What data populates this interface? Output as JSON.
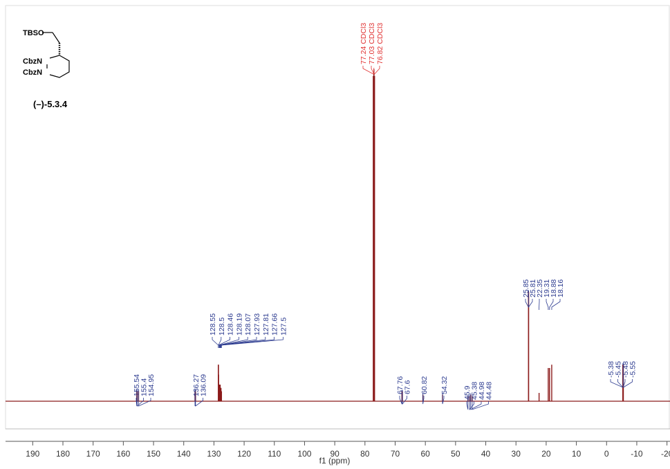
{
  "chart_data": {
    "type": "spectrum",
    "structure": {
      "labels": [
        "TBSO",
        "CbzN",
        "CbzN"
      ],
      "compound": "(–)-5.3.4"
    },
    "x_label": "f1 (ppm)",
    "xlim": [
      199,
      -21
    ],
    "xticks": [
      190,
      180,
      170,
      160,
      150,
      140,
      130,
      120,
      110,
      100,
      90,
      80,
      70,
      60,
      50,
      40,
      30,
      20,
      10,
      0,
      -10,
      -20
    ],
    "ylim": [
      0,
      100
    ],
    "line_color": "#8b1a1a",
    "peak_groups": [
      {
        "color": "#2b3a8f",
        "peaks": [
          {
            "ppm": 155.54,
            "height": 3
          },
          {
            "ppm": 155.4,
            "height": 3
          },
          {
            "ppm": 154.95,
            "height": 3
          }
        ]
      },
      {
        "color": "#2b3a8f",
        "peaks": [
          {
            "ppm": 136.27,
            "height": 3
          },
          {
            "ppm": 136.09,
            "height": 3
          }
        ]
      },
      {
        "color": "#2b3a8f",
        "peaks": [
          {
            "ppm": 128.55,
            "height": 11
          },
          {
            "ppm": 128.5,
            "height": 11
          },
          {
            "ppm": 128.46,
            "height": 8
          },
          {
            "ppm": 128.19,
            "height": 5
          },
          {
            "ppm": 128.07,
            "height": 5
          },
          {
            "ppm": 127.93,
            "height": 5
          },
          {
            "ppm": 127.81,
            "height": 4
          },
          {
            "ppm": 127.66,
            "height": 4
          },
          {
            "ppm": 127.5,
            "height": 3
          }
        ]
      },
      {
        "color": "#e03030",
        "peaks": [
          {
            "ppm": 77.24,
            "height": 98,
            "label": "77.24 CDCl3"
          },
          {
            "ppm": 77.03,
            "height": 100,
            "label": "77.03 CDCl3"
          },
          {
            "ppm": 76.82,
            "height": 98,
            "label": "76.82 CDCl3"
          }
        ]
      },
      {
        "color": "#2b3a8f",
        "peaks": [
          {
            "ppm": 67.76,
            "height": 3
          },
          {
            "ppm": 67.6,
            "height": 3
          }
        ]
      },
      {
        "color": "#2b3a8f",
        "peaks": [
          {
            "ppm": 60.82,
            "height": 2
          }
        ]
      },
      {
        "color": "#2b3a8f",
        "peaks": [
          {
            "ppm": 54.32,
            "height": 2
          }
        ]
      },
      {
        "color": "#2b3a8f",
        "peaks": [
          {
            "ppm": 45.9,
            "height": 1.5
          },
          {
            "ppm": 45.38,
            "height": 1.5
          },
          {
            "ppm": 44.98,
            "height": 2
          },
          {
            "ppm": 44.48,
            "height": 1.5
          }
        ]
      },
      {
        "color": "#2b3a8f",
        "peaks": [
          {
            "ppm": 25.85,
            "height": 33
          },
          {
            "ppm": 25.81,
            "height": 33
          },
          {
            "ppm": 22.35,
            "height": 2.5
          },
          {
            "ppm": 19.31,
            "height": 10
          },
          {
            "ppm": 18.88,
            "height": 10
          },
          {
            "ppm": 18.16,
            "height": 11
          }
        ]
      },
      {
        "color": "#2b3a8f",
        "peaks": [
          {
            "ppm": -5.38,
            "height": 11
          },
          {
            "ppm": -5.45,
            "height": 11
          },
          {
            "ppm": -5.48,
            "height": 11
          },
          {
            "ppm": -5.55,
            "height": 11
          }
        ]
      }
    ]
  }
}
